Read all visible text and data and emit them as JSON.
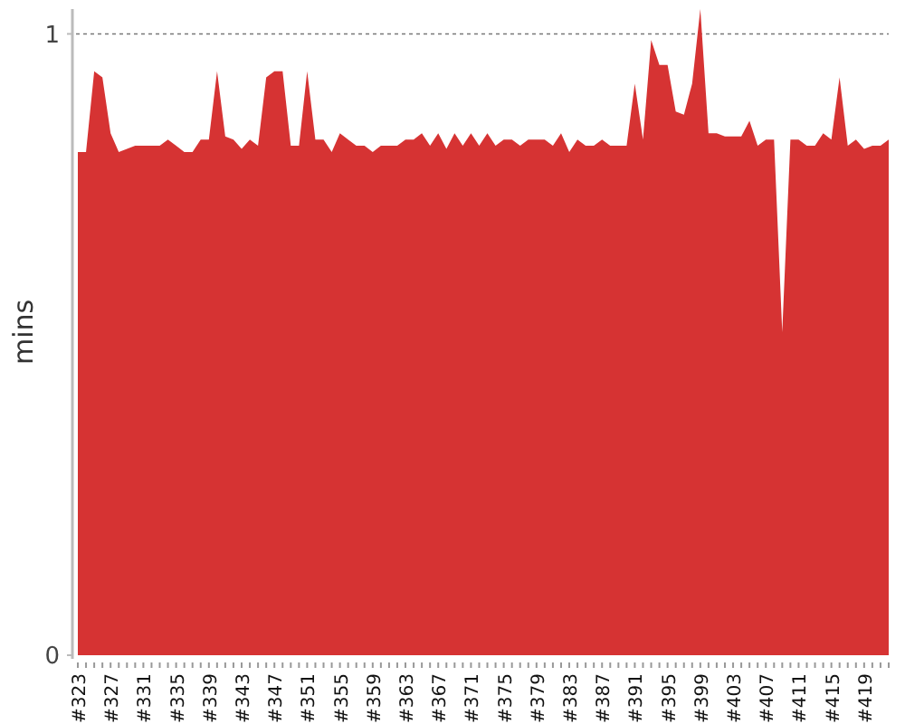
{
  "chart_data": {
    "type": "area",
    "ylabel": "mins",
    "categories": [
      "#323",
      null,
      null,
      null,
      "#327",
      null,
      null,
      null,
      "#331",
      null,
      null,
      null,
      "#335",
      null,
      null,
      null,
      "#339",
      null,
      null,
      null,
      "#343",
      null,
      null,
      null,
      "#347",
      null,
      null,
      null,
      "#351",
      null,
      null,
      null,
      "#355",
      null,
      null,
      null,
      "#359",
      null,
      null,
      null,
      "#363",
      null,
      null,
      null,
      "#367",
      null,
      null,
      null,
      "#371",
      null,
      null,
      null,
      "#375",
      null,
      null,
      null,
      "#379",
      null,
      null,
      null,
      "#383",
      null,
      null,
      null,
      "#387",
      null,
      null,
      null,
      "#391",
      null,
      null,
      null,
      "#395",
      null,
      null,
      null,
      "#399",
      null,
      null,
      null,
      "#403",
      null,
      null,
      null,
      "#407",
      null,
      null,
      null,
      "#411",
      null,
      null,
      null,
      "#415",
      null,
      null,
      null,
      "#419",
      null,
      null,
      null
    ],
    "values": [
      0.81,
      0.81,
      0.94,
      0.93,
      0.84,
      0.81,
      0.815,
      0.82,
      0.82,
      0.82,
      0.82,
      0.83,
      0.82,
      0.81,
      0.81,
      0.83,
      0.83,
      0.94,
      0.835,
      0.83,
      0.815,
      0.83,
      0.82,
      0.93,
      0.94,
      0.94,
      0.82,
      0.82,
      0.94,
      0.83,
      0.83,
      0.81,
      0.84,
      0.83,
      0.82,
      0.82,
      0.81,
      0.82,
      0.82,
      0.82,
      0.83,
      0.83,
      0.84,
      0.82,
      0.84,
      0.815,
      0.84,
      0.82,
      0.84,
      0.82,
      0.84,
      0.82,
      0.83,
      0.83,
      0.82,
      0.83,
      0.83,
      0.83,
      0.82,
      0.84,
      0.81,
      0.83,
      0.82,
      0.82,
      0.83,
      0.82,
      0.82,
      0.82,
      0.92,
      0.83,
      0.99,
      0.95,
      0.95,
      0.875,
      0.87,
      0.92,
      1.04,
      0.84,
      0.84,
      0.835,
      0.835,
      0.835,
      0.86,
      0.82,
      0.83,
      0.83,
      0.52,
      0.83,
      0.83,
      0.82,
      0.82,
      0.84,
      0.83,
      0.93,
      0.82,
      0.83,
      0.815,
      0.82,
      0.82,
      0.83
    ],
    "color": "#d63333",
    "ylim": [
      0,
      1.04
    ],
    "yticks": [
      0,
      1
    ],
    "grid": "y"
  }
}
